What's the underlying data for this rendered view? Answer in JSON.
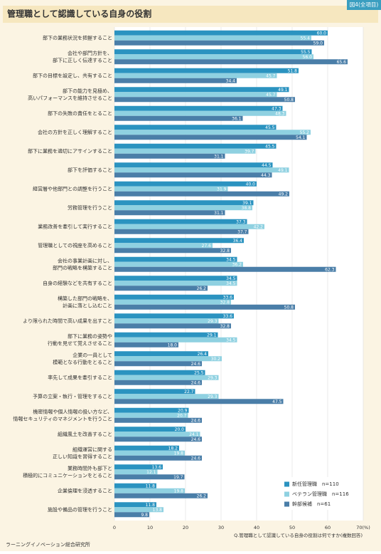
{
  "title": "管理職として認識している自身の役割",
  "badge": "図4(全項目)",
  "note": "Q.管理職として認識している自身の役割は何ですか(複数回答)",
  "footer": "ラーニングイノベーション総合研究所",
  "chart_data": {
    "type": "hbar",
    "categories": [
      [
        "部下の業務状況を把握すること"
      ],
      [
        "会社や部門方針を、",
        "部下に正しく伝達すること"
      ],
      [
        "部下の目標を設定し、共有すること"
      ],
      [
        "部下の能力を見極め、",
        "高いパフォーマンスを維持させること"
      ],
      [
        "部下の失敗の責任をとること"
      ],
      [
        "会社の方針を正しく理解すること"
      ],
      [
        "部下に業務を適切にアサインすること"
      ],
      [
        "部下を評価すること"
      ],
      [
        "経営層や他部門との調整を行うこと"
      ],
      [
        "労務管理を行うこと"
      ],
      [
        "業務改善を牽引して実行すること"
      ],
      [
        "管理職としての視座を高めること"
      ],
      [
        "会社の事業計画に対し、",
        "部門の戦略を構築すること"
      ],
      [
        "自身の経験などを共有すること"
      ],
      [
        "構築した部門の戦略を、",
        "計画に落とし込むこと"
      ],
      [
        "より限られた時間で高い成果を出すこと"
      ],
      [
        "部下に業務の姿勢や",
        "行動を見せて覚えさせること"
      ],
      [
        "企業の一員として",
        "模範となる行動をとること"
      ],
      [
        "率先して成果を牽引すること"
      ],
      [
        "予算の立案・執行・管理をすること"
      ],
      [
        "機密情報や個人情報の扱い方など、",
        "情報セキュリティのマネジメントを行うこと"
      ],
      [
        "組織風土を改善すること"
      ],
      [
        "組織運営に関する",
        "正しい知識を習得すること"
      ],
      [
        "業務時間外も部下と",
        "積極的にコミュニケーションをとること"
      ],
      [
        "企業倫理を浸透すること"
      ],
      [
        "施設や備品の管理を行うこと"
      ]
    ],
    "series": [
      {
        "name": "新任管理職　n=110",
        "color": "#2b93c0",
        "values": [
          60,
          55.5,
          51.8,
          49.1,
          47.3,
          45.5,
          45.5,
          44.5,
          40,
          39.1,
          37.3,
          36.4,
          34.5,
          34.5,
          33.6,
          33.6,
          29.1,
          26.4,
          25.5,
          22.7,
          20.9,
          20,
          18.2,
          13.6,
          11.8,
          11.8
        ],
        "value_labels": [
          "60.0",
          "55.5",
          "51.8",
          "49.1",
          "47.3",
          "45.5",
          "45.5",
          "44.5",
          "40.0",
          "39.1",
          "37.3",
          "36.4",
          "34.5",
          "34.5",
          "33.6",
          "33.6",
          "29.1",
          "26.4",
          "25.5",
          "22.7",
          "20.9",
          "20.0",
          "18.2",
          "13.6",
          "11.8",
          "11.8"
        ]
      },
      {
        "name": "ベテラン管理職　n=116",
        "color": "#8fd1e1",
        "values": [
          55.4,
          56,
          45.7,
          45.7,
          48.3,
          55.2,
          39.7,
          49.1,
          31.9,
          38.8,
          42.2,
          27.6,
          36.2,
          34.5,
          32.8,
          29.3,
          34.5,
          30.2,
          29.3,
          29.3,
          20.7,
          24.1,
          19.8,
          12.1,
          19.8,
          13.8
        ],
        "value_labels": [
          "55.4",
          "56.0",
          "45.7",
          "45.7",
          "48.3",
          "55.2",
          "39.7",
          "49.1",
          "31.9",
          "38.8",
          "42.2",
          "27.6",
          "36.2",
          "34.5",
          "32.8",
          "29.3",
          "34.5",
          "30.2",
          "29.3",
          "29.3",
          "20.7",
          "24.1",
          "19.8",
          "12.1",
          "19.8",
          "13.8"
        ]
      },
      {
        "name": "幹部候補　n=61",
        "color": "#4a7ea8",
        "values": [
          59,
          65.6,
          34.4,
          50.8,
          36.1,
          54.1,
          31.1,
          44.3,
          49.2,
          31.1,
          37.7,
          32.8,
          62.3,
          26.2,
          50.8,
          32.8,
          18,
          24.6,
          24.6,
          47.5,
          24.6,
          24.6,
          24.6,
          19.7,
          26.2,
          9.8
        ],
        "value_labels": [
          "59.0",
          "65.6",
          "34.4",
          "50.8",
          "36.1",
          "54.1",
          "31.1",
          "44.3",
          "49.2",
          "31.1",
          "37.7",
          "32.8",
          "62.3",
          "26.2",
          "50.8",
          "32.8",
          "18.0",
          "24.6",
          "24.6",
          "47.5",
          "24.6",
          "24.6",
          "24.6",
          "19.7",
          "26.2",
          "9.8"
        ]
      }
    ],
    "xlim": [
      0,
      70
    ],
    "xticks": [
      0,
      10,
      20,
      30,
      40,
      50,
      60,
      {
        "value": 70,
        "label": "70(%)"
      }
    ],
    "grid": true
  }
}
